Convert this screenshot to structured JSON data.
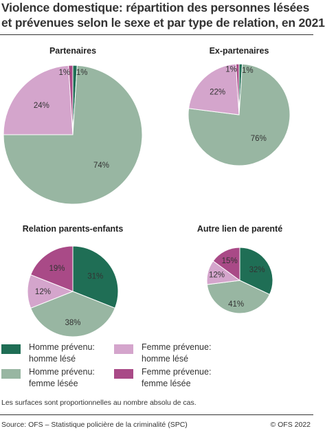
{
  "title": {
    "line1": "Violence domestique: répartition des personnes lésées",
    "line2": "et prévenues selon le sexe et par type de relation, en 2021"
  },
  "chart_data": {
    "type": "pie",
    "colors": {
      "homme_homme": "#1f6e55",
      "homme_femme": "#98b6a2",
      "femme_homme": "#d4a5cc",
      "femme_femme": "#a94a87"
    },
    "charts": [
      {
        "title": "Partenaires",
        "slices": [
          {
            "key": "homme_homme",
            "value": 1,
            "label": "1%"
          },
          {
            "key": "homme_femme",
            "value": 74,
            "label": "74%"
          },
          {
            "key": "femme_homme",
            "value": 24,
            "label": "24%"
          },
          {
            "key": "femme_femme",
            "value": 1,
            "label": "1%"
          }
        ]
      },
      {
        "title": "Ex-partenaires",
        "slices": [
          {
            "key": "homme_homme",
            "value": 1,
            "label": "1%"
          },
          {
            "key": "homme_femme",
            "value": 76,
            "label": "76%"
          },
          {
            "key": "femme_homme",
            "value": 22,
            "label": "22%"
          },
          {
            "key": "femme_femme",
            "value": 1,
            "label": "1%"
          }
        ]
      },
      {
        "title": "Relation parents-enfants",
        "slices": [
          {
            "key": "homme_homme",
            "value": 31,
            "label": "31%"
          },
          {
            "key": "homme_femme",
            "value": 38,
            "label": "38%"
          },
          {
            "key": "femme_homme",
            "value": 12,
            "label": "12%"
          },
          {
            "key": "femme_femme",
            "value": 19,
            "label": "19%"
          }
        ]
      },
      {
        "title": "Autre lien de parenté",
        "slices": [
          {
            "key": "homme_homme",
            "value": 32,
            "label": "32%"
          },
          {
            "key": "homme_femme",
            "value": 41,
            "label": "41%"
          },
          {
            "key": "femme_homme",
            "value": 12,
            "label": "12%"
          },
          {
            "key": "femme_femme",
            "value": 15,
            "label": "15%"
          }
        ]
      }
    ]
  },
  "legend": [
    {
      "key": "homme_homme",
      "line1": "Homme prévenu:",
      "line2": "homme lésé"
    },
    {
      "key": "femme_homme",
      "line1": "Femme prévenue:",
      "line2": "homme lésé"
    },
    {
      "key": "homme_femme",
      "line1": "Homme prévenu:",
      "line2": "femme lésée"
    },
    {
      "key": "femme_femme",
      "line1": "Femme prévenue:",
      "line2": "femme lésée"
    }
  ],
  "note": "Les surfaces sont proportionnelles au nombre absolu de cas.",
  "source": "Source: OFS – Statistique policière de la criminalité (SPC)",
  "copyright": "© OFS 2022"
}
